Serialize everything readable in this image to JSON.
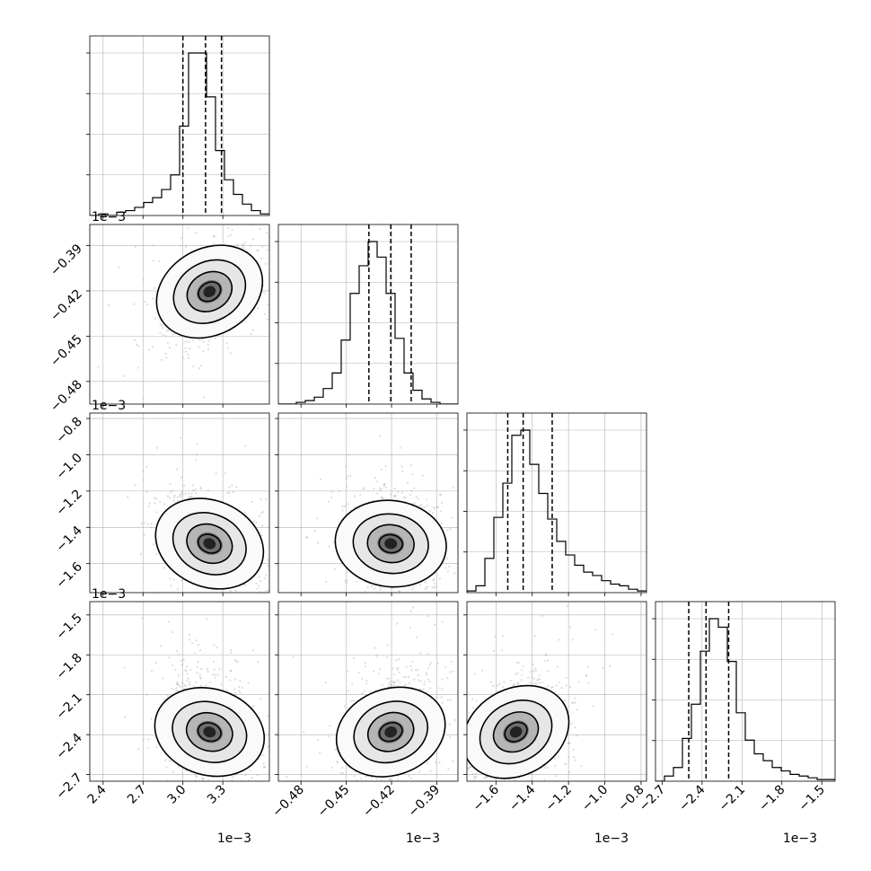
{
  "chart_data": {
    "type": "corner",
    "title": "",
    "parameters": [
      "",
      "",
      "",
      ""
    ],
    "offset_labels": [
      "1e−3",
      "1e−3",
      "1e−3",
      "1e−3"
    ],
    "axes": [
      {
        "range": [
          2.3,
          3.65
        ],
        "ticks": [
          2.4,
          2.7,
          3.0,
          3.3
        ],
        "tick_labels": [
          "2.4",
          "2.7",
          "3.0",
          "3.3"
        ]
      },
      {
        "range": [
          -0.495,
          -0.376
        ],
        "ticks": [
          -0.48,
          -0.45,
          -0.42,
          -0.39
        ],
        "tick_labels": [
          "−0.48",
          "−0.45",
          "−0.42",
          "−0.39"
        ]
      },
      {
        "range": [
          -1.76,
          -0.77
        ],
        "ticks": [
          -1.6,
          -1.4,
          -1.2,
          -1.0,
          -0.8
        ],
        "tick_labels": [
          "−1.6",
          "−1.4",
          "−1.2",
          "−1.0",
          "−0.8"
        ]
      },
      {
        "range": [
          -2.75,
          -1.4
        ],
        "ticks": [
          -2.7,
          -2.4,
          -2.1,
          -1.8,
          -1.5
        ],
        "tick_labels": [
          "−2.7",
          "−2.4",
          "−2.1",
          "−1.8",
          "−1.5"
        ]
      }
    ],
    "y_axes": [
      null,
      {
        "range": [
          -0.495,
          -0.376
        ],
        "ticks": [
          -0.48,
          -0.45,
          -0.42,
          -0.39
        ],
        "tick_labels": [
          "−0.48",
          "−0.45",
          "−0.42",
          "−0.39"
        ]
      },
      {
        "range": [
          -1.76,
          -0.77
        ],
        "ticks": [
          -1.6,
          -1.4,
          -1.2,
          -1.0,
          -0.8
        ],
        "tick_labels": [
          "−1.6",
          "−1.4",
          "−1.2",
          "−1.0",
          "−0.8"
        ]
      },
      {
        "range": [
          -2.75,
          -1.4
        ],
        "ticks": [
          -2.7,
          -2.4,
          -2.1,
          -1.8,
          -1.5
        ],
        "tick_labels": [
          "−2.7",
          "−2.4",
          "−2.1",
          "−1.8",
          "−1.5"
        ]
      }
    ],
    "quantiles": [
      [
        3.0,
        3.17,
        3.29
      ],
      [
        -0.435,
        -0.4205,
        -0.407
      ],
      [
        -1.535,
        -1.45,
        -1.29
      ],
      [
        -2.5,
        -2.37,
        -2.2
      ]
    ],
    "histograms": [
      {
        "edges_start": 2.3,
        "bin_width": 0.0675,
        "counts": [
          0,
          1,
          0,
          2,
          3,
          5,
          8,
          11,
          16,
          25,
          55,
          100,
          100,
          73,
          40,
          22,
          13,
          7,
          3,
          1
        ]
      },
      {
        "edges_start": -0.495,
        "bin_width": 0.00595,
        "counts": [
          0,
          0,
          1,
          2,
          4,
          9,
          18,
          37,
          64,
          80,
          94,
          85,
          64,
          38,
          18,
          8,
          3,
          1,
          0,
          0
        ]
      },
      {
        "edges_start": -1.76,
        "bin_width": 0.0495,
        "counts": [
          1,
          4,
          20,
          44,
          64,
          92,
          95,
          75,
          58,
          43,
          30,
          22,
          16,
          12,
          10,
          7,
          5,
          4,
          2,
          1
        ]
      },
      {
        "edges_start": -2.75,
        "bin_width": 0.0675,
        "counts": [
          0,
          3,
          8,
          25,
          45,
          76,
          95,
          90,
          70,
          40,
          24,
          16,
          12,
          8,
          6,
          4,
          3,
          2,
          1,
          1
        ]
      }
    ],
    "correlations": [
      [
        0,
        0.45,
        -0.35,
        -0.25
      ],
      [
        0.45,
        0,
        -0.1,
        0.3
      ],
      [
        -0.35,
        -0.1,
        0,
        0.45
      ],
      [
        -0.25,
        0.3,
        0.45,
        0
      ]
    ],
    "sigma": [
      0.14,
      0.0125,
      0.12,
      0.19
    ],
    "centers": [
      3.2,
      -0.4205,
      -1.49,
      -2.38
    ],
    "grid": true,
    "colors": {
      "hist": "#000000",
      "scatter": "#9a9a9a",
      "contour": "#000000",
      "quantile": "#000000",
      "grid": "#b0b0b0"
    }
  }
}
